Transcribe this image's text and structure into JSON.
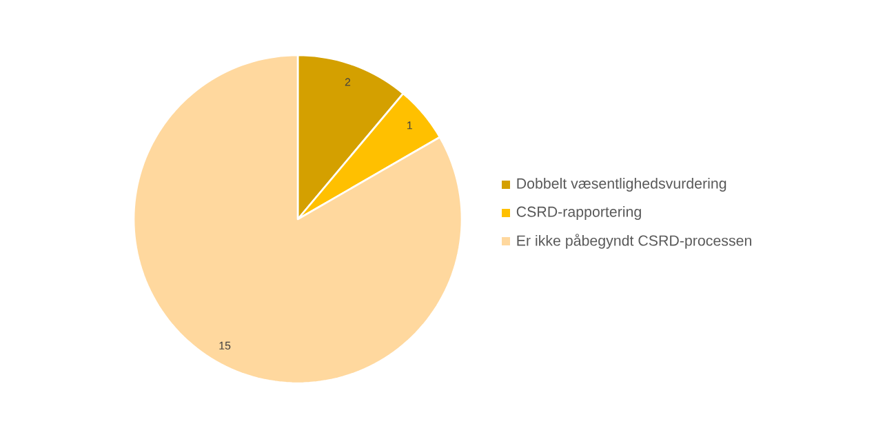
{
  "chart_data": {
    "type": "pie",
    "categories": [
      "Dobbelt væsentlighedsvurdering",
      "CSRD-rapportering",
      "Er ikke påbegyndt CSRD-processen"
    ],
    "values": [
      2,
      1,
      15
    ],
    "colors": [
      "#d4a000",
      "#ffc000",
      "#ffd89e"
    ],
    "data_labels": true,
    "legend": "right"
  }
}
